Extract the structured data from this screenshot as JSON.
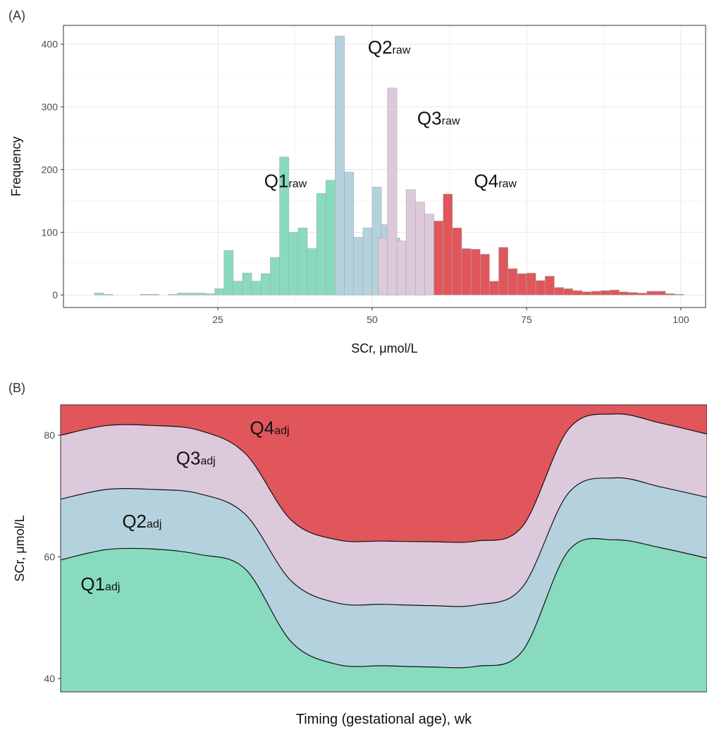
{
  "panels": [
    {
      "label": "(A)"
    },
    {
      "label": "(B)"
    }
  ],
  "chart_data": [
    {
      "type": "bar",
      "subtype": "histogram",
      "xlabel": "SCr, μmol/L",
      "ylabel": "Frequency",
      "xlim": [
        0,
        104
      ],
      "ylim": [
        -20,
        430
      ],
      "xticks": [
        25,
        50,
        75,
        100
      ],
      "yticks": [
        0,
        100,
        200,
        300,
        400
      ],
      "grid": true,
      "bin_width": 1.5,
      "groups": [
        {
          "name": "Q1raw",
          "base": "Q1",
          "sub": "raw",
          "color": "#88dbbf",
          "label_x": 32.5,
          "label_y": 172,
          "bins": [
            [
              5,
              3
            ],
            [
              6.5,
              1
            ],
            [
              8,
              0
            ],
            [
              9.5,
              0
            ],
            [
              11,
              0
            ],
            [
              12.5,
              1
            ],
            [
              14,
              1
            ],
            [
              15.5,
              0
            ],
            [
              17,
              1
            ],
            [
              18.5,
              3
            ],
            [
              20,
              3
            ],
            [
              21.5,
              3
            ],
            [
              23,
              2
            ],
            [
              24.5,
              10
            ],
            [
              26,
              71
            ],
            [
              27.5,
              22
            ],
            [
              29,
              35
            ],
            [
              30.5,
              22
            ],
            [
              32,
              34
            ],
            [
              33.5,
              60
            ],
            [
              35,
              220
            ],
            [
              36.5,
              100
            ],
            [
              38,
              107
            ],
            [
              39.5,
              74
            ],
            [
              41,
              162
            ],
            [
              42.5,
              183
            ]
          ]
        },
        {
          "name": "Q2raw",
          "base": "Q2",
          "sub": "raw",
          "color": "#b4d2dd",
          "label_x": 49.3,
          "label_y": 385,
          "bins": [
            [
              44,
              413
            ],
            [
              45.5,
              196
            ],
            [
              47,
              92
            ],
            [
              48.5,
              107
            ],
            [
              50,
              172
            ],
            [
              51.5,
              112
            ],
            [
              53,
              91
            ]
          ]
        },
        {
          "name": "Q3raw",
          "base": "Q3",
          "sub": "raw",
          "color": "#ddc9dc",
          "label_x": 57.3,
          "label_y": 272,
          "bins": [
            [
              51,
              91
            ],
            [
              52.5,
              330
            ],
            [
              54,
              86
            ],
            [
              55.5,
              168
            ],
            [
              57,
              148
            ],
            [
              58.5,
              129
            ]
          ]
        },
        {
          "name": "Q4raw",
          "base": "Q4",
          "sub": "raw",
          "color": "#e0565b",
          "label_x": 66.5,
          "label_y": 172,
          "bins": [
            [
              60,
              118
            ],
            [
              61.5,
              161
            ],
            [
              63,
              107
            ],
            [
              64.5,
              74
            ],
            [
              66,
              73
            ],
            [
              67.5,
              65
            ],
            [
              69,
              22
            ],
            [
              70.5,
              76
            ],
            [
              72,
              42
            ],
            [
              73.5,
              34
            ],
            [
              75,
              35
            ],
            [
              76.5,
              23
            ],
            [
              78,
              30
            ],
            [
              79.5,
              12
            ],
            [
              81,
              10
            ],
            [
              82.5,
              7
            ],
            [
              84,
              5
            ],
            [
              85.5,
              6
            ],
            [
              87,
              7
            ],
            [
              88.5,
              8
            ],
            [
              90,
              5
            ],
            [
              91.5,
              4
            ],
            [
              93,
              3
            ],
            [
              94.5,
              6
            ],
            [
              96,
              6
            ],
            [
              97.5,
              2
            ],
            [
              99,
              1
            ],
            [
              100.5,
              0
            ]
          ]
        }
      ]
    },
    {
      "type": "area",
      "subtype": "stacked quantile bands",
      "xlabel": "Timing (gestational age), wk",
      "ylabel": "SCr, μmol/L",
      "ylim": [
        37.8,
        85
      ],
      "yticks": [
        40,
        60,
        80
      ],
      "grid": false,
      "x": [
        0,
        3,
        6,
        9,
        12,
        15,
        18,
        21,
        24,
        27,
        30,
        33,
        36,
        39,
        42
      ],
      "boundaries": [
        {
          "name": "Q1/Q2",
          "values": [
            59.5,
            61.2,
            61.3,
            60.4,
            58.0,
            46.0,
            42.3,
            42.1,
            41.9,
            42.0,
            44.5,
            61.0,
            62.8,
            61.5,
            59.8
          ]
        },
        {
          "name": "Q2/Q3",
          "values": [
            69.5,
            71.1,
            71.1,
            70.4,
            67.0,
            56.0,
            52.4,
            52.2,
            52.0,
            52.1,
            55.0,
            70.5,
            73.0,
            71.5,
            69.8
          ]
        },
        {
          "name": "Q3/Q4",
          "values": [
            80.0,
            81.6,
            81.6,
            80.8,
            77.0,
            66.0,
            62.8,
            62.6,
            62.5,
            62.6,
            65.0,
            81.0,
            83.5,
            82.0,
            80.2
          ]
        }
      ],
      "top": 85,
      "bands": [
        {
          "name": "Q1adj",
          "base": "Q1",
          "sub": "adj",
          "color": "#88dbbf",
          "label_x": 1.3,
          "label_y": 54.5
        },
        {
          "name": "Q2adj",
          "base": "Q2",
          "sub": "adj",
          "color": "#b4d2dd",
          "label_x": 4.0,
          "label_y": 64.8
        },
        {
          "name": "Q3adj",
          "base": "Q3",
          "sub": "adj",
          "color": "#ddc9dc",
          "label_x": 7.5,
          "label_y": 75.2
        },
        {
          "name": "Q4adj",
          "base": "Q4",
          "sub": "adj",
          "color": "#e0565b",
          "label_x": 12.3,
          "label_y": 80.2
        }
      ]
    }
  ]
}
